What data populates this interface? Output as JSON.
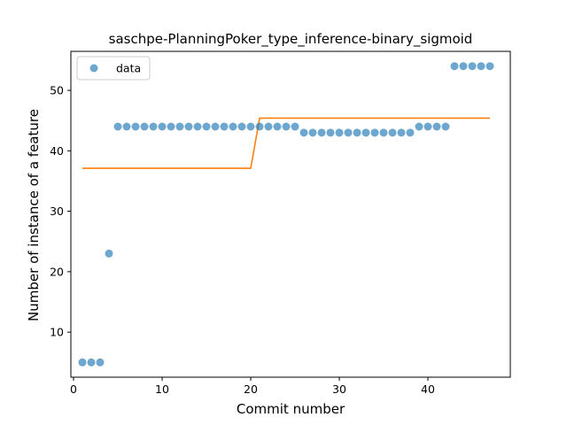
{
  "chart_data": {
    "type": "scatter",
    "title": "saschpe-PlanningPoker_type_inference-binary_sigmoid",
    "xlabel": "Commit number",
    "ylabel": "Number of instance of a feature",
    "xlim": [
      -0.3,
      49.3
    ],
    "ylim": [
      2.55,
      56.45
    ],
    "xticks": [
      0,
      10,
      20,
      30,
      40
    ],
    "yticks": [
      10,
      20,
      30,
      40,
      50
    ],
    "grid": false,
    "legend_position": "upper left",
    "series": [
      {
        "name": "data",
        "kind": "scatter",
        "color": "#1f77b4",
        "x": [
          1,
          2,
          3,
          4,
          5,
          6,
          7,
          8,
          9,
          10,
          11,
          12,
          13,
          14,
          15,
          16,
          17,
          18,
          19,
          20,
          21,
          22,
          23,
          24,
          25,
          26,
          27,
          28,
          29,
          30,
          31,
          32,
          33,
          34,
          35,
          36,
          37,
          38,
          39,
          40,
          41,
          42,
          43,
          44,
          45,
          46,
          47
        ],
        "y": [
          5,
          5,
          5,
          23,
          44,
          44,
          44,
          44,
          44,
          44,
          44,
          44,
          44,
          44,
          44,
          44,
          44,
          44,
          44,
          44,
          44,
          44,
          44,
          44,
          44,
          43,
          43,
          43,
          43,
          43,
          43,
          43,
          43,
          43,
          43,
          43,
          43,
          43,
          44,
          44,
          44,
          44,
          54,
          54,
          54,
          54,
          54
        ]
      },
      {
        "kind": "line",
        "color": "#ff7f0e",
        "x": [
          1,
          20,
          21,
          47
        ],
        "y": [
          37.1,
          37.1,
          45.4,
          45.4
        ]
      }
    ]
  }
}
